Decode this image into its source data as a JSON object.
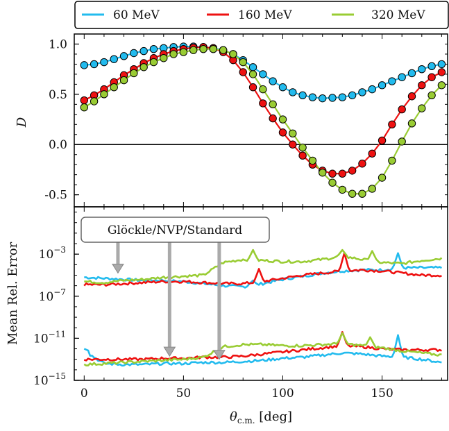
{
  "legend": {
    "entries": [
      {
        "label": "60 MeV",
        "color": "#22bbee"
      },
      {
        "label": "160 MeV",
        "color": "#ee1111"
      },
      {
        "label": "320 MeV",
        "color": "#99cc33"
      }
    ],
    "placement": "top"
  },
  "annotation": {
    "text": "Glöckle/NVP/Standard",
    "arrow_targets_deg": [
      17,
      43,
      68
    ]
  },
  "chart_data": [
    {
      "type": "line",
      "panel": "top",
      "ylabel": "D",
      "xlim": [
        -5,
        183
      ],
      "ylim": [
        -0.62,
        1.1
      ],
      "yticks": [
        -0.5,
        0.0,
        0.5,
        1.0
      ],
      "ytick_labels": [
        "-0.5",
        "0.0",
        "0.5",
        "1.0"
      ],
      "xticks": [
        0,
        50,
        100,
        150
      ],
      "reference_line_y": 0.0,
      "x": [
        0,
        5,
        10,
        15,
        20,
        25,
        30,
        35,
        40,
        45,
        50,
        55,
        60,
        65,
        70,
        75,
        80,
        85,
        90,
        95,
        100,
        105,
        110,
        115,
        120,
        125,
        130,
        135,
        140,
        145,
        150,
        155,
        160,
        165,
        170,
        175,
        180
      ],
      "series": [
        {
          "name": "60 MeV",
          "color": "#22bbee",
          "values": [
            0.79,
            0.8,
            0.82,
            0.85,
            0.88,
            0.91,
            0.93,
            0.95,
            0.96,
            0.97,
            0.975,
            0.975,
            0.97,
            0.96,
            0.94,
            0.9,
            0.84,
            0.77,
            0.7,
            0.63,
            0.57,
            0.52,
            0.49,
            0.47,
            0.46,
            0.465,
            0.47,
            0.49,
            0.52,
            0.55,
            0.59,
            0.63,
            0.67,
            0.71,
            0.75,
            0.78,
            0.8
          ]
        },
        {
          "name": "160 MeV",
          "color": "#ee1111",
          "values": [
            0.44,
            0.49,
            0.55,
            0.62,
            0.69,
            0.75,
            0.81,
            0.86,
            0.9,
            0.93,
            0.95,
            0.965,
            0.97,
            0.96,
            0.92,
            0.84,
            0.72,
            0.57,
            0.41,
            0.26,
            0.12,
            0.0,
            -0.11,
            -0.2,
            -0.26,
            -0.29,
            -0.29,
            -0.26,
            -0.19,
            -0.09,
            0.04,
            0.2,
            0.35,
            0.48,
            0.59,
            0.67,
            0.72
          ]
        },
        {
          "name": "320 MeV",
          "color": "#99cc33",
          "values": [
            0.37,
            0.43,
            0.5,
            0.57,
            0.64,
            0.71,
            0.77,
            0.82,
            0.86,
            0.9,
            0.92,
            0.94,
            0.95,
            0.95,
            0.94,
            0.9,
            0.82,
            0.7,
            0.55,
            0.4,
            0.25,
            0.11,
            -0.03,
            -0.16,
            -0.28,
            -0.38,
            -0.45,
            -0.49,
            -0.49,
            -0.44,
            -0.33,
            -0.16,
            0.03,
            0.21,
            0.36,
            0.49,
            0.59
          ]
        }
      ]
    },
    {
      "type": "line",
      "panel": "bottom",
      "xlabel": "θc.m. [deg]",
      "ylabel": "Mean Rel. Error",
      "yscale": "log",
      "xlim": [
        -5,
        183
      ],
      "ylim_exponent": [
        -15,
        1.5
      ],
      "yticks": [
        "10^-3",
        "10^-7",
        "10^-11",
        "10^-15"
      ],
      "xticks": [
        0,
        50,
        100,
        150
      ],
      "xtick_labels": [
        "0",
        "50",
        "100",
        "150"
      ],
      "x": [
        0,
        10,
        20,
        30,
        40,
        50,
        60,
        70,
        80,
        90,
        100,
        110,
        120,
        130,
        140,
        150,
        160,
        170,
        180
      ],
      "series": [
        {
          "name": "60 MeV",
          "color": "#22bbee",
          "values_log10": [
            -5.2,
            -5.3,
            -5.4,
            -5.5,
            -5.5,
            -5.6,
            -5.8,
            -6.0,
            -6.1,
            -5.8,
            -5.4,
            -5.1,
            -4.8,
            -4.6,
            -4.5,
            -4.5,
            -4.3,
            -4.3,
            -4.3
          ],
          "peaks_log10": [
            {
              "x": 85,
              "v": -5.5
            },
            {
              "x": 158,
              "v": -2.9
            }
          ]
        },
        {
          "name": "160 MeV",
          "color": "#ee1111",
          "values_log10": [
            -5.9,
            -5.9,
            -5.8,
            -5.7,
            -5.6,
            -5.6,
            -5.7,
            -5.8,
            -5.8,
            -5.6,
            -5.3,
            -5.0,
            -4.8,
            -4.6,
            -4.5,
            -4.6,
            -4.8,
            -5.0,
            -5.0
          ],
          "peaks_log10": [
            {
              "x": 88,
              "v": -4.4
            },
            {
              "x": 131,
              "v": -2.9
            }
          ]
        },
        {
          "name": "320 MeV",
          "color": "#99cc33",
          "values_log10": [
            -5.6,
            -5.7,
            -5.5,
            -5.4,
            -5.2,
            -5.1,
            -5.0,
            -3.8,
            -3.5,
            -3.6,
            -3.7,
            -3.7,
            -3.5,
            -3.2,
            -3.5,
            -3.8,
            -3.9,
            -3.6,
            -3.4
          ],
          "peaks_log10": [
            {
              "x": 85,
              "v": -2.6
            },
            {
              "x": 130,
              "v": -2.6
            },
            {
              "x": 145,
              "v": -2.7
            }
          ]
        },
        {
          "name": "60 MeV",
          "color": "#22bbee",
          "values_log10": [
            -12.2,
            -13.4,
            -13.5,
            -13.5,
            -13.4,
            -13.4,
            -13.3,
            -13.3,
            -13.2,
            -13.1,
            -12.9,
            -12.8,
            -12.6,
            -12.4,
            -12.5,
            -12.7,
            -12.8,
            -13.0,
            -13.3
          ],
          "peaks_log10": [
            {
              "x": 0,
              "v": -12.0
            },
            {
              "x": 158,
              "v": -10.7
            }
          ]
        },
        {
          "name": "160 MeV",
          "color": "#ee1111",
          "values_log10": [
            -13.0,
            -13.0,
            -13.0,
            -13.0,
            -12.9,
            -12.9,
            -12.8,
            -12.8,
            -12.7,
            -12.5,
            -12.3,
            -12.1,
            -11.9,
            -11.7,
            -11.8,
            -12.0,
            -12.1,
            -12.1,
            -12.1
          ],
          "peaks_log10": [
            {
              "x": 130,
              "v": -10.4
            }
          ]
        },
        {
          "name": "320 MeV",
          "color": "#99cc33",
          "values_log10": [
            -13.5,
            -13.4,
            -13.3,
            -13.2,
            -13.1,
            -13.0,
            -12.8,
            -11.8,
            -11.6,
            -11.6,
            -11.7,
            -11.7,
            -11.6,
            -11.5,
            -11.7,
            -11.9,
            -12.2,
            -12.4,
            -12.6
          ],
          "peaks_log10": [
            {
              "x": 130,
              "v": -10.5
            },
            {
              "x": 144,
              "v": -10.9
            }
          ]
        }
      ]
    }
  ]
}
